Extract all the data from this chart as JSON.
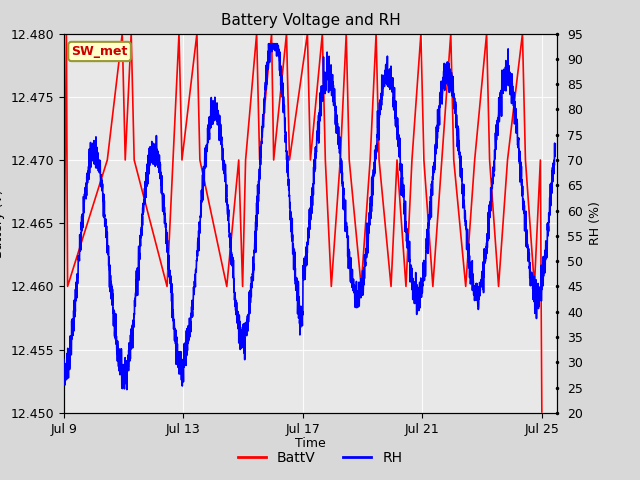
{
  "title": "Battery Voltage and RH",
  "xlabel": "Time",
  "ylabel_left": "Battery (V)",
  "ylabel_right": "RH (%)",
  "x_tick_labels": [
    "Jul 9",
    "Jul 13",
    "Jul 17",
    "Jul 21",
    "Jul 25"
  ],
  "x_tick_positions": [
    0,
    4,
    8,
    12,
    16
  ],
  "ylim_left": [
    12.45,
    12.48
  ],
  "ylim_right": [
    20,
    95
  ],
  "yticks_left": [
    12.45,
    12.455,
    12.46,
    12.465,
    12.47,
    12.475,
    12.48
  ],
  "yticks_right": [
    20,
    25,
    30,
    35,
    40,
    45,
    50,
    55,
    60,
    65,
    70,
    75,
    80,
    85,
    90,
    95
  ],
  "bg_color": "#d8d8d8",
  "plot_bg_color": "#e8e8e8",
  "label_box_text": "SW_met",
  "label_box_facecolor": "#ffffcc",
  "label_box_edgecolor": "#999933",
  "label_box_textcolor": "#cc0000",
  "legend_labels": [
    "BattV",
    "RH"
  ],
  "total_days": 16.5,
  "rh_min": 20,
  "rh_max": 95,
  "batt_min": 12.45,
  "batt_max": 12.48
}
